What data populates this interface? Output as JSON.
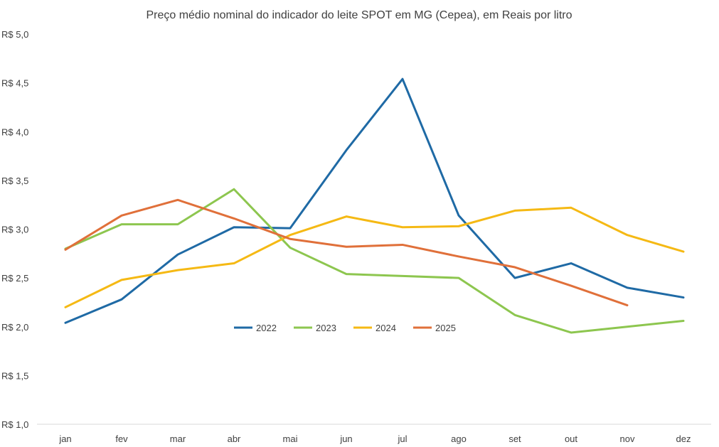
{
  "chart_data": {
    "type": "line",
    "title": "Preço médio nominal do indicador do leite SPOT em MG (Cepea), em Reais por litro",
    "xlabel": "",
    "ylabel": "",
    "categories": [
      "jan",
      "fev",
      "mar",
      "abr",
      "mai",
      "jun",
      "jul",
      "ago",
      "set",
      "out",
      "nov",
      "dez"
    ],
    "ylim": [
      1.0,
      5.0
    ],
    "yticks": [
      1.0,
      1.5,
      2.0,
      2.5,
      3.0,
      3.5,
      4.0,
      4.5,
      5.0
    ],
    "ytick_labels": [
      "R$ 1,0",
      "R$ 1,5",
      "R$ 2,0",
      "R$ 2,5",
      "R$ 3,0",
      "R$ 3,5",
      "R$ 4,0",
      "R$ 4,5",
      "R$ 5,0"
    ],
    "grid": false,
    "legend_position": "center",
    "series": [
      {
        "name": "2022",
        "color": "#1f6aa5",
        "values": [
          2.04,
          2.28,
          2.74,
          3.02,
          3.01,
          3.81,
          4.54,
          3.14,
          2.5,
          2.65,
          2.4,
          2.3
        ]
      },
      {
        "name": "2023",
        "color": "#8dc64f",
        "values": [
          2.8,
          3.05,
          3.05,
          3.41,
          2.81,
          2.54,
          2.52,
          2.5,
          2.12,
          1.94,
          2.0,
          2.06
        ]
      },
      {
        "name": "2024",
        "color": "#f5b914",
        "values": [
          2.2,
          2.48,
          2.58,
          2.65,
          2.94,
          3.13,
          3.02,
          3.03,
          3.19,
          3.22,
          2.94,
          2.77
        ]
      },
      {
        "name": "2025",
        "color": "#e0703a",
        "values": [
          2.79,
          3.14,
          3.3,
          3.11,
          2.9,
          2.82,
          2.84,
          2.72,
          2.61,
          2.42,
          2.22,
          null
        ]
      }
    ]
  }
}
